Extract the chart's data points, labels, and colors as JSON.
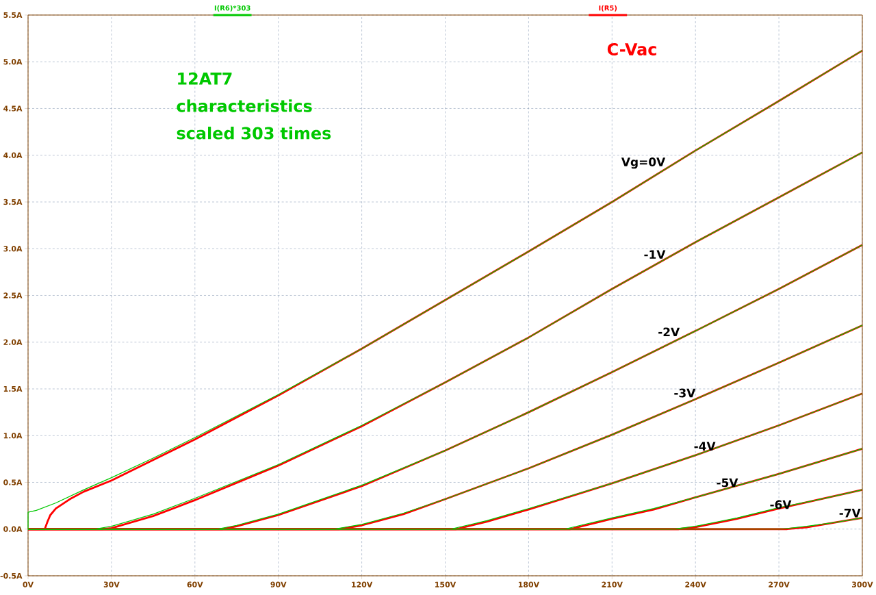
{
  "chart_data": {
    "type": "line",
    "xlim": [
      0,
      300
    ],
    "ylim": [
      -0.5,
      5.5
    ],
    "xticks": [
      {
        "value": 0,
        "label": "0V"
      },
      {
        "value": 30,
        "label": "30V"
      },
      {
        "value": 60,
        "label": "60V"
      },
      {
        "value": 90,
        "label": "90V"
      },
      {
        "value": 120,
        "label": "120V"
      },
      {
        "value": 150,
        "label": "150V"
      },
      {
        "value": 180,
        "label": "180V"
      },
      {
        "value": 210,
        "label": "210V"
      },
      {
        "value": 240,
        "label": "240V"
      },
      {
        "value": 270,
        "label": "270V"
      },
      {
        "value": 300,
        "label": "300V"
      }
    ],
    "yticks": [
      {
        "value": -0.5,
        "label": "-0.5A"
      },
      {
        "value": 0,
        "label": "0.0A"
      },
      {
        "value": 0.5,
        "label": "0.5A"
      },
      {
        "value": 1,
        "label": "1.0A"
      },
      {
        "value": 1.5,
        "label": "1.5A"
      },
      {
        "value": 2,
        "label": "2.0A"
      },
      {
        "value": 2.5,
        "label": "2.5A"
      },
      {
        "value": 3,
        "label": "3.0A"
      },
      {
        "value": 3.5,
        "label": "3.5A"
      },
      {
        "value": 4,
        "label": "4.0A"
      },
      {
        "value": 4.5,
        "label": "4.5A"
      },
      {
        "value": 5,
        "label": "5.0A"
      },
      {
        "value": 5.5,
        "label": "5.5A"
      }
    ],
    "grid": true,
    "legend": "top",
    "marker": "none",
    "line_style": "solid",
    "series": [
      {
        "name": "I(R6)*303",
        "color": "#00c800",
        "x": [
          0,
          0,
          3,
          10,
          20,
          30,
          45,
          60,
          90,
          120,
          150,
          180,
          210,
          240,
          270,
          300
        ],
        "values": [
          0,
          0.18,
          0.2,
          0.28,
          0.42,
          0.55,
          0.76,
          0.98,
          1.44,
          1.93,
          2.45,
          2.97,
          3.5,
          4.05,
          4.58,
          5.12
        ]
      },
      {
        "color": "#00c800",
        "x": [
          0,
          24,
          30,
          45,
          60,
          90,
          120,
          150,
          180,
          210,
          240,
          270,
          300
        ],
        "values": [
          0,
          0,
          0.03,
          0.16,
          0.33,
          0.69,
          1.11,
          1.57,
          2.05,
          2.57,
          3.07,
          3.55,
          4.03
        ]
      },
      {
        "color": "#00c800",
        "x": [
          0,
          68,
          75,
          90,
          120,
          150,
          180,
          210,
          240,
          270,
          300
        ],
        "values": [
          0,
          0,
          0.04,
          0.16,
          0.47,
          0.84,
          1.25,
          1.68,
          2.12,
          2.57,
          3.04
        ]
      },
      {
        "color": "#00c800",
        "x": [
          0,
          110,
          120,
          135,
          150,
          180,
          210,
          240,
          270,
          300
        ],
        "values": [
          0,
          0,
          0.05,
          0.17,
          0.32,
          0.65,
          1.01,
          1.39,
          1.78,
          2.18
        ]
      },
      {
        "color": "#00c800",
        "x": [
          0,
          152,
          165,
          180,
          210,
          240,
          270,
          300
        ],
        "values": [
          0,
          0,
          0.09,
          0.22,
          0.49,
          0.79,
          1.11,
          1.45
        ]
      },
      {
        "color": "#00c800",
        "x": [
          0,
          193,
          210,
          225,
          240,
          270,
          300
        ],
        "values": [
          0,
          0,
          0.12,
          0.22,
          0.34,
          0.59,
          0.86
        ]
      },
      {
        "color": "#00c800",
        "x": [
          0,
          232,
          240,
          255,
          270,
          285,
          300
        ],
        "values": [
          0,
          0,
          0.03,
          0.12,
          0.23,
          0.32,
          0.42
        ]
      },
      {
        "color": "#00c800",
        "x": [
          0,
          271,
          280,
          290,
          300
        ],
        "values": [
          0,
          0,
          0.03,
          0.07,
          0.12
        ]
      },
      {
        "name": "I(R5)",
        "color": "#ff0000",
        "x": [
          0,
          6,
          7,
          8,
          10,
          15,
          20,
          30,
          45,
          60,
          90,
          120,
          150,
          180,
          210,
          240,
          270,
          300
        ],
        "values": [
          0,
          0,
          0.08,
          0.15,
          0.22,
          0.32,
          0.4,
          0.52,
          0.74,
          0.96,
          1.43,
          1.93,
          2.45,
          2.97,
          3.5,
          4.05,
          4.58,
          5.12
        ]
      },
      {
        "color": "#ff0000",
        "x": [
          0,
          27,
          30,
          45,
          60,
          90,
          120,
          150,
          180,
          210,
          240,
          270,
          300
        ],
        "values": [
          0,
          0,
          0.01,
          0.14,
          0.31,
          0.68,
          1.1,
          1.57,
          2.05,
          2.57,
          3.07,
          3.55,
          4.03
        ]
      },
      {
        "color": "#ff0000",
        "x": [
          0,
          70,
          75,
          90,
          120,
          150,
          180,
          210,
          240,
          270,
          300
        ],
        "values": [
          0,
          0,
          0.03,
          0.15,
          0.46,
          0.84,
          1.25,
          1.68,
          2.12,
          2.57,
          3.04
        ]
      },
      {
        "color": "#ff0000",
        "x": [
          0,
          112,
          120,
          135,
          150,
          180,
          210,
          240,
          270,
          300
        ],
        "values": [
          0,
          0,
          0.04,
          0.16,
          0.32,
          0.65,
          1.01,
          1.39,
          1.78,
          2.18
        ]
      },
      {
        "color": "#ff0000",
        "x": [
          0,
          154,
          165,
          180,
          210,
          240,
          270,
          300
        ],
        "values": [
          0,
          0,
          0.08,
          0.21,
          0.49,
          0.79,
          1.11,
          1.45
        ]
      },
      {
        "color": "#ff0000",
        "x": [
          0,
          195,
          210,
          225,
          240,
          270,
          300
        ],
        "values": [
          0,
          0,
          0.11,
          0.21,
          0.34,
          0.59,
          0.86
        ]
      },
      {
        "color": "#ff0000",
        "x": [
          0,
          234,
          240,
          255,
          270,
          285,
          300
        ],
        "values": [
          0,
          0,
          0.02,
          0.11,
          0.22,
          0.32,
          0.42
        ]
      },
      {
        "color": "#ff0000",
        "x": [
          0,
          273,
          280,
          290,
          300
        ],
        "values": [
          0,
          0,
          0.02,
          0.07,
          0.12
        ]
      }
    ],
    "annotations": [
      "12AT7 characteristics scaled 303 times",
      "C-Vac",
      "Vg=0V",
      "-1V",
      "-2V",
      "-3V",
      "-4V",
      "-5V",
      "-6V",
      "-7V"
    ]
  }
}
